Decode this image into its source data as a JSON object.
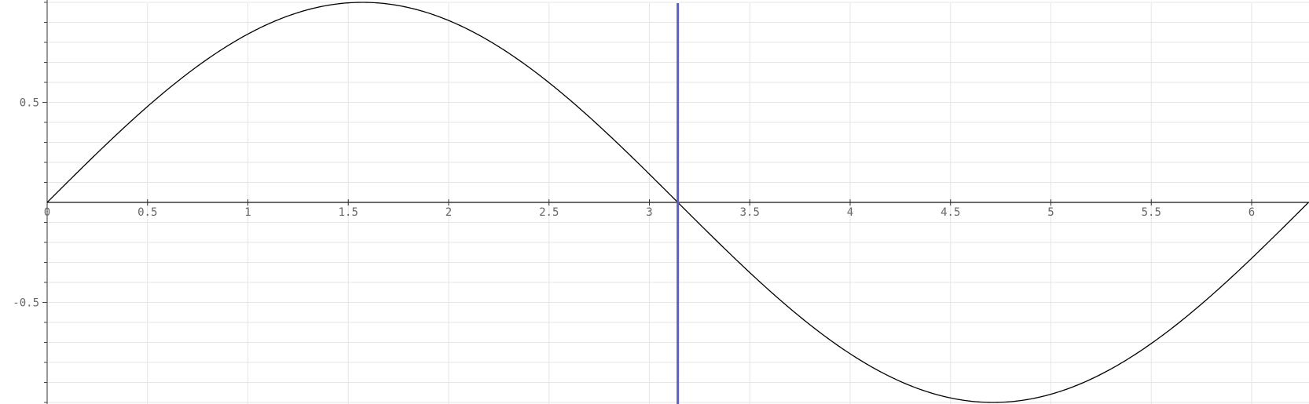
{
  "chart_data": {
    "type": "line",
    "function": "sin(x)",
    "xlim": [
      0,
      6.283
    ],
    "ylim": [
      -1,
      1
    ],
    "x_ticks": [
      0,
      0.5,
      1,
      1.5,
      2,
      2.5,
      3,
      3.5,
      4,
      4.5,
      5,
      5.5,
      6
    ],
    "x_tick_labels": [
      "0",
      "0.5",
      "1",
      "1.5",
      "2",
      "2.5",
      "3",
      "3.5",
      "4",
      "4.5",
      "5",
      "5.5",
      "6"
    ],
    "y_ticks": [
      0.5,
      -0.5
    ],
    "y_tick_labels": [
      "0.5",
      "-0.5"
    ],
    "grid": true,
    "series": [
      {
        "x": [
          0,
          0.25,
          0.5,
          0.75,
          1,
          1.25,
          1.5,
          1.5708,
          1.75,
          2,
          2.25,
          2.5,
          2.75,
          3,
          3.1416,
          3.25,
          3.5,
          3.75,
          4,
          4.25,
          4.5,
          4.7124,
          4.75,
          5,
          5.25,
          5.5,
          5.75,
          6,
          6.283
        ],
        "y": [
          0,
          0.247,
          0.479,
          0.682,
          0.841,
          0.949,
          0.997,
          1,
          0.984,
          0.909,
          0.778,
          0.598,
          0.382,
          0.141,
          0,
          -0.108,
          -0.351,
          -0.572,
          -0.757,
          -0.895,
          -0.978,
          -1,
          -0.999,
          -0.959,
          -0.859,
          -0.706,
          -0.509,
          -0.279,
          0
        ],
        "color": "#000000"
      }
    ],
    "vertical_marker": {
      "x": 3.1416,
      "color": "#5b5fbf"
    }
  }
}
